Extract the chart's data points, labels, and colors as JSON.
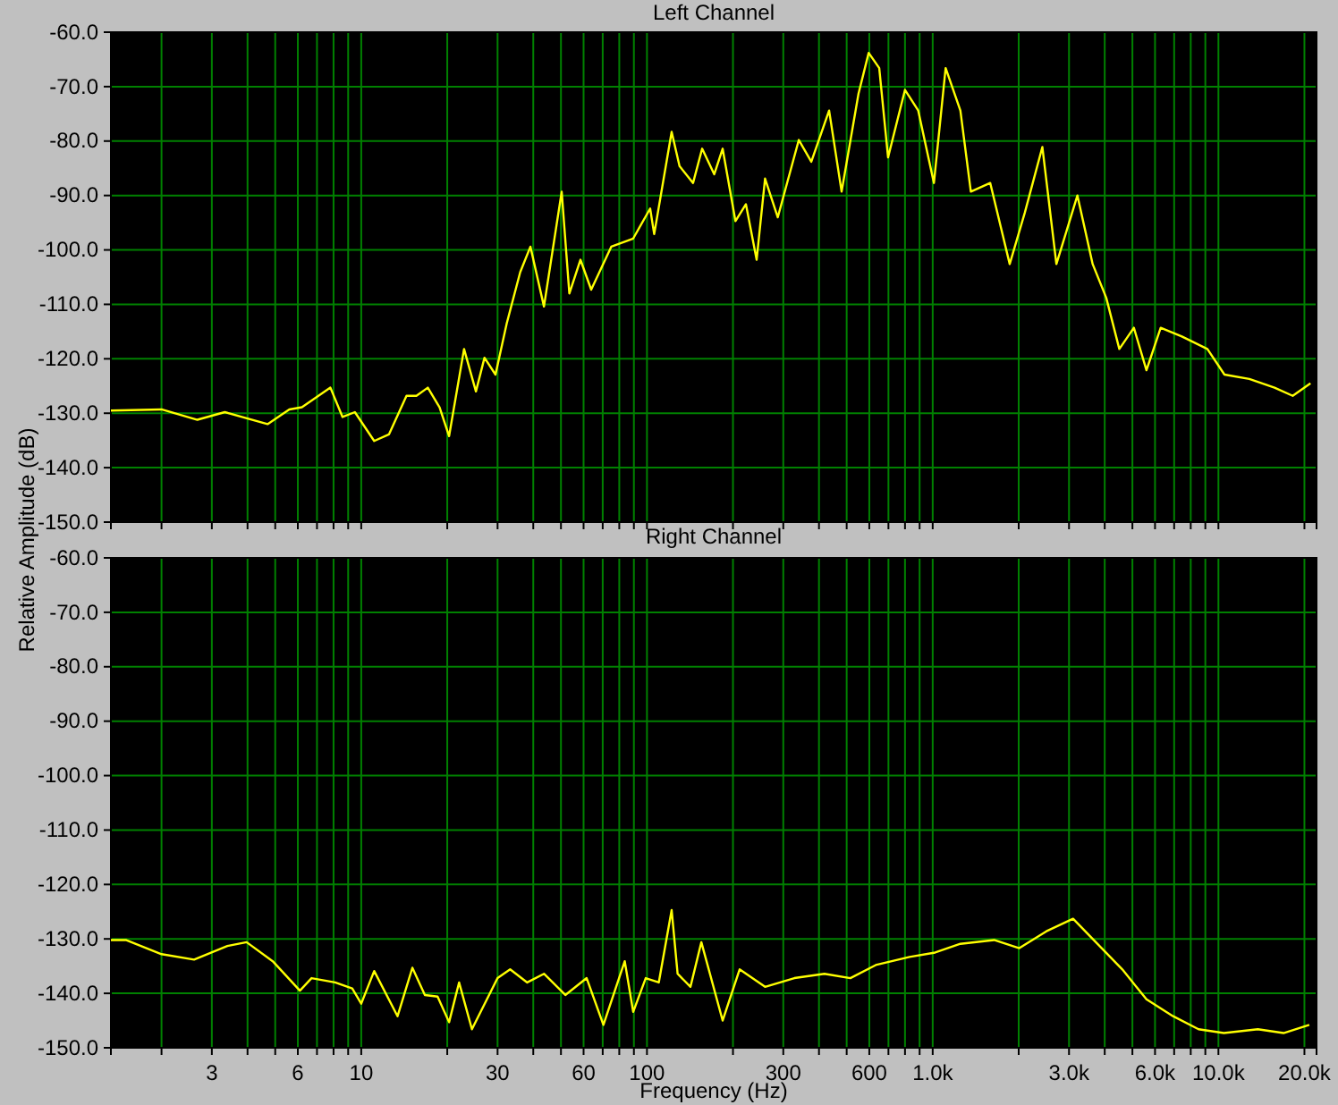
{
  "chart_data": [
    {
      "type": "line",
      "title": "Left Channel",
      "ylabel": "Relative Amplitude (dB)",
      "log": "x",
      "grid": true,
      "tick_labels": "y",
      "xlim": [
        1.33,
        22050
      ],
      "ylim": [
        -150,
        -60
      ],
      "xticks": [
        {
          "value": 2,
          "label": null
        },
        {
          "value": 3,
          "label": null
        },
        {
          "value": 4,
          "label": null
        },
        {
          "value": 5,
          "label": null
        },
        {
          "value": 6,
          "label": null
        },
        {
          "value": 7,
          "label": null
        },
        {
          "value": 8,
          "label": null
        },
        {
          "value": 9,
          "label": null
        },
        {
          "value": 10,
          "label": null
        },
        {
          "value": 20,
          "label": null
        },
        {
          "value": 30,
          "label": null
        },
        {
          "value": 40,
          "label": null
        },
        {
          "value": 50,
          "label": null
        },
        {
          "value": 60,
          "label": null
        },
        {
          "value": 70,
          "label": null
        },
        {
          "value": 80,
          "label": null
        },
        {
          "value": 90,
          "label": null
        },
        {
          "value": 100,
          "label": null
        },
        {
          "value": 200,
          "label": null
        },
        {
          "value": 300,
          "label": null
        },
        {
          "value": 400,
          "label": null
        },
        {
          "value": 500,
          "label": null
        },
        {
          "value": 600,
          "label": null
        },
        {
          "value": 700,
          "label": null
        },
        {
          "value": 800,
          "label": null
        },
        {
          "value": 900,
          "label": null
        },
        {
          "value": 1000,
          "label": null
        },
        {
          "value": 2000,
          "label": null
        },
        {
          "value": 3000,
          "label": null
        },
        {
          "value": 4000,
          "label": null
        },
        {
          "value": 5000,
          "label": null
        },
        {
          "value": 6000,
          "label": null
        },
        {
          "value": 7000,
          "label": null
        },
        {
          "value": 8000,
          "label": null
        },
        {
          "value": 9000,
          "label": null
        },
        {
          "value": 10000,
          "label": null
        },
        {
          "value": 20000,
          "label": null
        }
      ],
      "yticks": [
        {
          "value": -60,
          "label": "-60.0"
        },
        {
          "value": -70,
          "label": "-70.0"
        },
        {
          "value": -80,
          "label": "-80.0"
        },
        {
          "value": -90,
          "label": "-90.0"
        },
        {
          "value": -100,
          "label": "-100.0"
        },
        {
          "value": -110,
          "label": "-110.0"
        },
        {
          "value": -120,
          "label": "-120.0"
        },
        {
          "value": -130,
          "label": "-130.0"
        },
        {
          "value": -140,
          "label": "-140.0"
        },
        {
          "value": -150,
          "label": "-150.0"
        }
      ],
      "series": [
        {
          "color": "#ffff00",
          "x": [
            1.33,
            2.0,
            2.67,
            3.33,
            4.7,
            5.6,
            6.2,
            7.8,
            8.6,
            9.5,
            11.1,
            12.5,
            14.4,
            15.6,
            17.1,
            18.8,
            20.3,
            22.9,
            25.2,
            27,
            29.5,
            32.3,
            36,
            39.1,
            43.6,
            50.3,
            53.5,
            58.5,
            63.8,
            75,
            89.5,
            102.6,
            106,
            122,
            130,
            145,
            156,
            172,
            184,
            204,
            222,
            242,
            259,
            287,
            340,
            376,
            434,
            480,
            550,
            597,
            650,
            698,
            800,
            890,
            1010,
            1110,
            1250,
            1360,
            1590,
            1860,
            2100,
            2420,
            2710,
            3210,
            3630,
            4050,
            4500,
            5060,
            5600,
            6280,
            7450,
            9150,
            10500,
            12830,
            15720,
            18200,
            21000
          ],
          "values": [
            -129.5,
            -129.3,
            -131.2,
            -129.8,
            -132,
            -129.3,
            -128.9,
            -125.3,
            -130.7,
            -129.8,
            -135.1,
            -133.9,
            -126.8,
            -126.8,
            -125.3,
            -128.9,
            -134.2,
            -118.2,
            -126,
            -119.8,
            -122.9,
            -113.5,
            -104.1,
            -99.4,
            -110.4,
            -89.3,
            -108,
            -101.8,
            -107.3,
            -99.4,
            -97.9,
            -92.4,
            -97.1,
            -78.3,
            -84.6,
            -87.7,
            -81.4,
            -86.1,
            -81.4,
            -94.7,
            -91.6,
            -101.8,
            -86.9,
            -94,
            -79.8,
            -83.8,
            -74.4,
            -89.3,
            -71.3,
            -63.8,
            -66.6,
            -83,
            -70.6,
            -74.4,
            -87.7,
            -66.6,
            -74.4,
            -89.3,
            -87.7,
            -102.6,
            -93.2,
            -81.1,
            -102.6,
            -90,
            -102.6,
            -108.8,
            -118.2,
            -114.3,
            -122.1,
            -114.3,
            -115.9,
            -118.2,
            -122.9,
            -123.7,
            -125.3,
            -126.8,
            -124.5
          ]
        }
      ]
    },
    {
      "type": "line",
      "title": "Right Channel",
      "xlabel": "Frequency (Hz)",
      "log": "x",
      "grid": true,
      "xlim": [
        1.33,
        22050
      ],
      "ylim": [
        -150,
        -60
      ],
      "xticks": [
        {
          "value": 2,
          "label": null
        },
        {
          "value": 3,
          "label": "3"
        },
        {
          "value": 4,
          "label": null
        },
        {
          "value": 5,
          "label": null
        },
        {
          "value": 6,
          "label": "6"
        },
        {
          "value": 7,
          "label": null
        },
        {
          "value": 8,
          "label": null
        },
        {
          "value": 9,
          "label": null
        },
        {
          "value": 10,
          "label": "10"
        },
        {
          "value": 20,
          "label": null
        },
        {
          "value": 30,
          "label": "30"
        },
        {
          "value": 40,
          "label": null
        },
        {
          "value": 50,
          "label": null
        },
        {
          "value": 60,
          "label": "60"
        },
        {
          "value": 70,
          "label": null
        },
        {
          "value": 80,
          "label": null
        },
        {
          "value": 90,
          "label": null
        },
        {
          "value": 100,
          "label": "100"
        },
        {
          "value": 200,
          "label": null
        },
        {
          "value": 300,
          "label": "300"
        },
        {
          "value": 400,
          "label": null
        },
        {
          "value": 500,
          "label": null
        },
        {
          "value": 600,
          "label": "600"
        },
        {
          "value": 700,
          "label": null
        },
        {
          "value": 800,
          "label": null
        },
        {
          "value": 900,
          "label": null
        },
        {
          "value": 1000,
          "label": "1.0k"
        },
        {
          "value": 2000,
          "label": null
        },
        {
          "value": 3000,
          "label": "3.0k"
        },
        {
          "value": 4000,
          "label": null
        },
        {
          "value": 5000,
          "label": null
        },
        {
          "value": 6000,
          "label": "6.0k"
        },
        {
          "value": 7000,
          "label": null
        },
        {
          "value": 8000,
          "label": null
        },
        {
          "value": 9000,
          "label": null
        },
        {
          "value": 10000,
          "label": "10.0k"
        },
        {
          "value": 20000,
          "label": "20.0k"
        }
      ],
      "yticks": [
        {
          "value": -60,
          "label": "-60.0"
        },
        {
          "value": -70,
          "label": "-70.0"
        },
        {
          "value": -80,
          "label": "-80.0"
        },
        {
          "value": -90,
          "label": "-90.0"
        },
        {
          "value": -100,
          "label": "-100.0"
        },
        {
          "value": -110,
          "label": "-110.0"
        },
        {
          "value": -120,
          "label": "-120.0"
        },
        {
          "value": -130,
          "label": "-130.0"
        },
        {
          "value": -140,
          "label": "-140.0"
        },
        {
          "value": -150,
          "label": "-150.0"
        }
      ],
      "series": [
        {
          "color": "#ffff00",
          "x": [
            1.33,
            1.5,
            2.0,
            2.6,
            3.4,
            3.97,
            4.9,
            6.1,
            6.7,
            8.1,
            9.3,
            10,
            11.1,
            13.4,
            15.1,
            16.7,
            18.5,
            20.3,
            22,
            24.4,
            30,
            33.2,
            38.1,
            43.6,
            51.8,
            61.5,
            70.4,
            83.6,
            89.5,
            99,
            110,
            122,
            128,
            142,
            155,
            184,
            211,
            259,
            328,
            418,
            515,
            632,
            830,
            1020,
            1250,
            1640,
            2010,
            2500,
            3100,
            3770,
            4610,
            5600,
            6940,
            8520,
            10450,
            13740,
            16900,
            20800
          ],
          "values": [
            -130.2,
            -130.2,
            -132.8,
            -133.8,
            -131.3,
            -130.6,
            -134.1,
            -139.5,
            -137.2,
            -138,
            -139.1,
            -141.9,
            -135.9,
            -144.2,
            -135.3,
            -140.3,
            -140.6,
            -145.3,
            -138,
            -146.6,
            -137.2,
            -135.6,
            -138,
            -136.4,
            -140.3,
            -137.2,
            -145.8,
            -134.1,
            -143.4,
            -137.2,
            -138,
            -124.7,
            -136.4,
            -138.8,
            -130.6,
            -145,
            -135.6,
            -138.8,
            -137.2,
            -136.4,
            -137.2,
            -134.8,
            -133.3,
            -132.5,
            -130.9,
            -130.2,
            -131.7,
            -128.6,
            -126.3,
            -130.9,
            -135.6,
            -141.1,
            -144.2,
            -146.6,
            -147.3,
            -146.6,
            -147.3,
            -145.8
          ]
        }
      ]
    }
  ]
}
